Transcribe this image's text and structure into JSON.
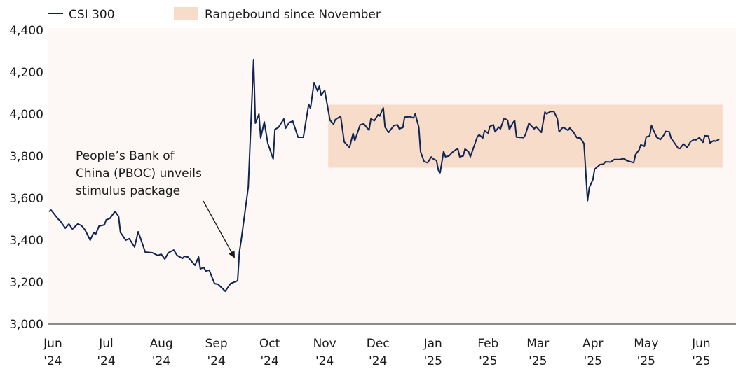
{
  "chart_data": {
    "type": "line",
    "title": "",
    "xlabel": "",
    "ylabel": "",
    "ylim": [
      3000,
      4400
    ],
    "yticks": [
      {
        "value": 3000,
        "label": "3,000"
      },
      {
        "value": 3200,
        "label": "3,200"
      },
      {
        "value": 3400,
        "label": "3,400"
      },
      {
        "value": 3600,
        "label": "3,600"
      },
      {
        "value": 3800,
        "label": "3,800"
      },
      {
        "value": 4000,
        "label": "4,000"
      },
      {
        "value": 4200,
        "label": "4,200"
      },
      {
        "value": 4400,
        "label": "4,400"
      }
    ],
    "xticks": [
      {
        "date": "2024-06",
        "month": "Jun",
        "year": "'24"
      },
      {
        "date": "2024-07",
        "month": "Jul",
        "year": "'24"
      },
      {
        "date": "2024-08",
        "month": "Aug",
        "year": "'24"
      },
      {
        "date": "2024-09",
        "month": "Sep",
        "year": "'24"
      },
      {
        "date": "2024-10",
        "month": "Oct",
        "year": "'24"
      },
      {
        "date": "2024-11",
        "month": "Nov",
        "year": "'24"
      },
      {
        "date": "2024-12",
        "month": "Dec",
        "year": "'24"
      },
      {
        "date": "2025-01",
        "month": "Jan",
        "year": "'25"
      },
      {
        "date": "2025-02",
        "month": "Feb",
        "year": "'25"
      },
      {
        "date": "2025-03",
        "month": "Mar",
        "year": "'25"
      },
      {
        "date": "2025-04",
        "month": "Apr",
        "year": "'25"
      },
      {
        "date": "2025-05",
        "month": "May",
        "year": "'25"
      },
      {
        "date": "2025-06",
        "month": "Jun",
        "year": "'25"
      }
    ],
    "grid": false,
    "legend_position": "top-left",
    "legend": [
      {
        "label": "CSI 300",
        "kind": "line"
      },
      {
        "label": "Rangebound since November",
        "kind": "band"
      }
    ],
    "colors": {
      "line": "#0f2452",
      "band": "#f7dcca",
      "plot_background": "#fdf7f5",
      "annotation": "#1a1a1a"
    },
    "band": {
      "start": "2024-11-14",
      "end": "2025-06-24",
      "low": 3745,
      "high": 4045
    },
    "annotation": {
      "lines": [
        "People’s Bank of",
        "China (PBOC) unveils",
        "stimulus package"
      ],
      "points_to": {
        "date": "2024-09-24",
        "value": 3320
      }
    },
    "series": [
      {
        "name": "CSI 300",
        "points": [
          [
            "2024-06-10",
            3537
          ],
          [
            "2024-06-11",
            3543
          ],
          [
            "2024-06-15",
            3500
          ],
          [
            "2024-06-16",
            3493
          ],
          [
            "2024-06-19",
            3457
          ],
          [
            "2024-06-21",
            3477
          ],
          [
            "2024-06-23",
            3453
          ],
          [
            "2024-06-26",
            3477
          ],
          [
            "2024-06-28",
            3470
          ],
          [
            "2024-06-30",
            3450
          ],
          [
            "2024-07-03",
            3400
          ],
          [
            "2024-07-05",
            3437
          ],
          [
            "2024-07-06",
            3427
          ],
          [
            "2024-07-08",
            3467
          ],
          [
            "2024-07-11",
            3473
          ],
          [
            "2024-07-12",
            3497
          ],
          [
            "2024-07-14",
            3503
          ],
          [
            "2024-07-17",
            3537
          ],
          [
            "2024-07-19",
            3513
          ],
          [
            "2024-07-20",
            3437
          ],
          [
            "2024-07-23",
            3400
          ],
          [
            "2024-07-25",
            3407
          ],
          [
            "2024-07-28",
            3367
          ],
          [
            "2024-07-30",
            3440
          ],
          [
            "2024-07-31",
            3417
          ],
          [
            "2024-08-03",
            3343
          ],
          [
            "2024-08-07",
            3340
          ],
          [
            "2024-08-10",
            3327
          ],
          [
            "2024-08-12",
            3333
          ],
          [
            "2024-08-14",
            3310
          ],
          [
            "2024-08-16",
            3340
          ],
          [
            "2024-08-19",
            3353
          ],
          [
            "2024-08-21",
            3327
          ],
          [
            "2024-08-24",
            3313
          ],
          [
            "2024-08-25",
            3323
          ],
          [
            "2024-08-27",
            3320
          ],
          [
            "2024-08-31",
            3280
          ],
          [
            "2024-09-02",
            3320
          ],
          [
            "2024-09-03",
            3263
          ],
          [
            "2024-09-05",
            3270
          ],
          [
            "2024-09-06",
            3253
          ],
          [
            "2024-09-08",
            3257
          ],
          [
            "2024-09-11",
            3193
          ],
          [
            "2024-09-13",
            3190
          ],
          [
            "2024-09-17",
            3157
          ],
          [
            "2024-09-20",
            3193
          ],
          [
            "2024-09-24",
            3207
          ],
          [
            "2024-09-25",
            3343
          ],
          [
            "2024-09-26",
            3400
          ],
          [
            "2024-09-30",
            3653
          ],
          [
            "2024-10-03",
            4260
          ],
          [
            "2024-10-04",
            3957
          ],
          [
            "2024-10-06",
            4000
          ],
          [
            "2024-10-07",
            3887
          ],
          [
            "2024-10-09",
            3963
          ],
          [
            "2024-10-11",
            3860
          ],
          [
            "2024-10-12",
            3837
          ],
          [
            "2024-10-14",
            3787
          ],
          [
            "2024-10-15",
            3927
          ],
          [
            "2024-10-17",
            3937
          ],
          [
            "2024-10-20",
            3977
          ],
          [
            "2024-10-21",
            3933
          ],
          [
            "2024-10-23",
            3960
          ],
          [
            "2024-10-25",
            3967
          ],
          [
            "2024-10-28",
            3890
          ],
          [
            "2024-10-31",
            3890
          ],
          [
            "2024-11-01",
            3943
          ],
          [
            "2024-11-03",
            4047
          ],
          [
            "2024-11-04",
            4027
          ],
          [
            "2024-11-06",
            4150
          ],
          [
            "2024-11-08",
            4110
          ],
          [
            "2024-11-09",
            4133
          ],
          [
            "2024-11-10",
            4090
          ],
          [
            "2024-11-12",
            4113
          ],
          [
            "2024-11-15",
            3971
          ],
          [
            "2024-11-17",
            3952
          ],
          [
            "2024-11-18",
            3974
          ],
          [
            "2024-11-21",
            3990
          ],
          [
            "2024-11-23",
            3868
          ],
          [
            "2024-11-26",
            3841
          ],
          [
            "2024-11-28",
            3908
          ],
          [
            "2024-11-29",
            3874
          ],
          [
            "2024-12-02",
            3949
          ],
          [
            "2024-12-04",
            3954
          ],
          [
            "2024-12-07",
            3924
          ],
          [
            "2024-12-08",
            3977
          ],
          [
            "2024-12-10",
            3969
          ],
          [
            "2024-12-12",
            3997
          ],
          [
            "2024-12-13",
            3991
          ],
          [
            "2024-12-15",
            4030
          ],
          [
            "2024-12-16",
            3938
          ],
          [
            "2024-12-18",
            3913
          ],
          [
            "2024-12-21",
            3946
          ],
          [
            "2024-12-23",
            3949
          ],
          [
            "2024-12-24",
            3930
          ],
          [
            "2024-12-26",
            3936
          ],
          [
            "2024-12-27",
            3986
          ],
          [
            "2024-12-30",
            3988
          ],
          [
            "2025-01-01",
            3982
          ],
          [
            "2025-01-02",
            4001
          ],
          [
            "2025-01-04",
            3938
          ],
          [
            "2025-01-05",
            3821
          ],
          [
            "2025-01-07",
            3774
          ],
          [
            "2025-01-09",
            3769
          ],
          [
            "2025-01-11",
            3796
          ],
          [
            "2025-01-12",
            3788
          ],
          [
            "2025-01-14",
            3779
          ],
          [
            "2025-01-15",
            3734
          ],
          [
            "2025-01-16",
            3721
          ],
          [
            "2025-01-18",
            3823
          ],
          [
            "2025-01-19",
            3797
          ],
          [
            "2025-01-21",
            3801
          ],
          [
            "2025-01-23",
            3819
          ],
          [
            "2025-01-25",
            3832
          ],
          [
            "2025-01-26",
            3834
          ],
          [
            "2025-01-27",
            3797
          ],
          [
            "2025-01-29",
            3801
          ],
          [
            "2025-01-30",
            3834
          ],
          [
            "2025-02-01",
            3821
          ],
          [
            "2025-02-02",
            3797
          ],
          [
            "2025-02-06",
            3893
          ],
          [
            "2025-02-07",
            3902
          ],
          [
            "2025-02-09",
            3886
          ],
          [
            "2025-02-10",
            3921
          ],
          [
            "2025-02-12",
            3910
          ],
          [
            "2025-02-13",
            3941
          ],
          [
            "2025-02-15",
            3949
          ],
          [
            "2025-02-16",
            3916
          ],
          [
            "2025-02-18",
            3938
          ],
          [
            "2025-02-19",
            3930
          ],
          [
            "2025-02-21",
            3980
          ],
          [
            "2025-02-23",
            3971
          ],
          [
            "2025-02-24",
            3927
          ],
          [
            "2025-02-26",
            3960
          ],
          [
            "2025-02-27",
            3969
          ],
          [
            "2025-02-28",
            3891
          ],
          [
            "2025-03-04",
            3888
          ],
          [
            "2025-03-05",
            3902
          ],
          [
            "2025-03-07",
            3957
          ],
          [
            "2025-03-08",
            3947
          ],
          [
            "2025-03-10",
            3930
          ],
          [
            "2025-03-11",
            3941
          ],
          [
            "2025-03-14",
            3913
          ],
          [
            "2025-03-16",
            4010
          ],
          [
            "2025-03-17",
            4001
          ],
          [
            "2025-03-19",
            4012
          ],
          [
            "2025-03-21",
            4013
          ],
          [
            "2025-03-23",
            3979
          ],
          [
            "2025-03-24",
            3916
          ],
          [
            "2025-03-26",
            3936
          ],
          [
            "2025-03-27",
            3934
          ],
          [
            "2025-03-29",
            3923
          ],
          [
            "2025-03-30",
            3934
          ],
          [
            "2025-04-01",
            3916
          ],
          [
            "2025-04-03",
            3888
          ],
          [
            "2025-04-05",
            3886
          ],
          [
            "2025-04-07",
            3860
          ],
          [
            "2025-04-09",
            3588
          ],
          [
            "2025-04-10",
            3651
          ],
          [
            "2025-04-12",
            3688
          ],
          [
            "2025-04-13",
            3738
          ],
          [
            "2025-04-15",
            3752
          ],
          [
            "2025-04-16",
            3760
          ],
          [
            "2025-04-18",
            3762
          ],
          [
            "2025-04-19",
            3773
          ],
          [
            "2025-04-22",
            3772
          ],
          [
            "2025-04-24",
            3784
          ],
          [
            "2025-04-27",
            3784
          ],
          [
            "2025-04-29",
            3788
          ],
          [
            "2025-04-30",
            3786
          ],
          [
            "2025-05-01",
            3779
          ],
          [
            "2025-05-05",
            3769
          ],
          [
            "2025-05-06",
            3807
          ],
          [
            "2025-05-08",
            3830
          ],
          [
            "2025-05-09",
            3854
          ],
          [
            "2025-05-11",
            3847
          ],
          [
            "2025-05-12",
            3891
          ],
          [
            "2025-05-14",
            3897
          ],
          [
            "2025-05-15",
            3946
          ],
          [
            "2025-05-17",
            3907
          ],
          [
            "2025-05-18",
            3890
          ],
          [
            "2025-05-20",
            3879
          ],
          [
            "2025-05-22",
            3901
          ],
          [
            "2025-05-23",
            3918
          ],
          [
            "2025-05-25",
            3916
          ],
          [
            "2025-05-26",
            3886
          ],
          [
            "2025-05-28",
            3862
          ],
          [
            "2025-05-30",
            3838
          ],
          [
            "2025-05-31",
            3836
          ],
          [
            "2025-06-02",
            3858
          ],
          [
            "2025-06-04",
            3841
          ],
          [
            "2025-06-05",
            3854
          ],
          [
            "2025-06-06",
            3869
          ],
          [
            "2025-06-08",
            3879
          ],
          [
            "2025-06-09",
            3877
          ],
          [
            "2025-06-11",
            3888
          ],
          [
            "2025-06-13",
            3866
          ],
          [
            "2025-06-14",
            3897
          ],
          [
            "2025-06-16",
            3896
          ],
          [
            "2025-06-17",
            3863
          ],
          [
            "2025-06-19",
            3874
          ],
          [
            "2025-06-20",
            3871
          ],
          [
            "2025-06-22",
            3879
          ]
        ]
      }
    ]
  }
}
